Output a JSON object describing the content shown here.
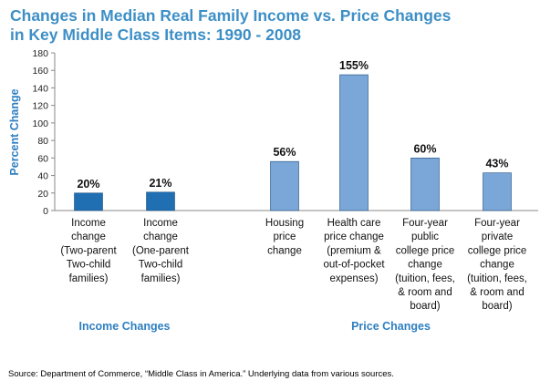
{
  "title_line1": "Changes in Median Real Family Income vs. Price Changes",
  "title_line2": "in Key Middle Class Items: 1990 - 2008",
  "source": "Source: Department of Commerce, “Middle Class in America.”  Underlying data from various sources.",
  "colors": {
    "income_bar": "#1f6fb2",
    "price_bar": "#7aa6d8",
    "title": "#3d8fc6",
    "group_label": "#2f7fc1"
  },
  "chart_data": {
    "type": "bar",
    "title": "Changes in Median Real Family Income vs. Price Changes in Key Middle Class Items: 1990 - 2008",
    "ylabel": "Percent Change",
    "xlabel": "",
    "ylim": [
      0,
      180
    ],
    "yticks": [
      0,
      20,
      40,
      60,
      80,
      100,
      120,
      140,
      160,
      180
    ],
    "grid": false,
    "categories": [
      [
        "Income",
        "change",
        "(Two-parent",
        "Two-child",
        "families)"
      ],
      [
        "Income",
        "change",
        "(One-parent",
        "Two-child",
        "families)"
      ],
      [
        "Housing",
        "price",
        "change"
      ],
      [
        "Health care",
        "price change",
        "(premium &",
        "out-of-pocket",
        "expenses)"
      ],
      [
        "Four-year",
        "public",
        "college price",
        "change",
        "(tuition, fees,",
        "& room and",
        "board)"
      ],
      [
        "Four-year",
        "private",
        "college price",
        "change",
        "(tuition, fees,",
        "& room and",
        "board)"
      ]
    ],
    "values": [
      20,
      21,
      56,
      155,
      60,
      43
    ],
    "value_labels": [
      "20%",
      "21%",
      "56%",
      "155%",
      "60%",
      "43%"
    ],
    "groups": [
      {
        "label": "Income Changes",
        "members": [
          0,
          1
        ]
      },
      {
        "label": "Price Changes",
        "members": [
          2,
          3,
          4,
          5
        ]
      }
    ]
  }
}
